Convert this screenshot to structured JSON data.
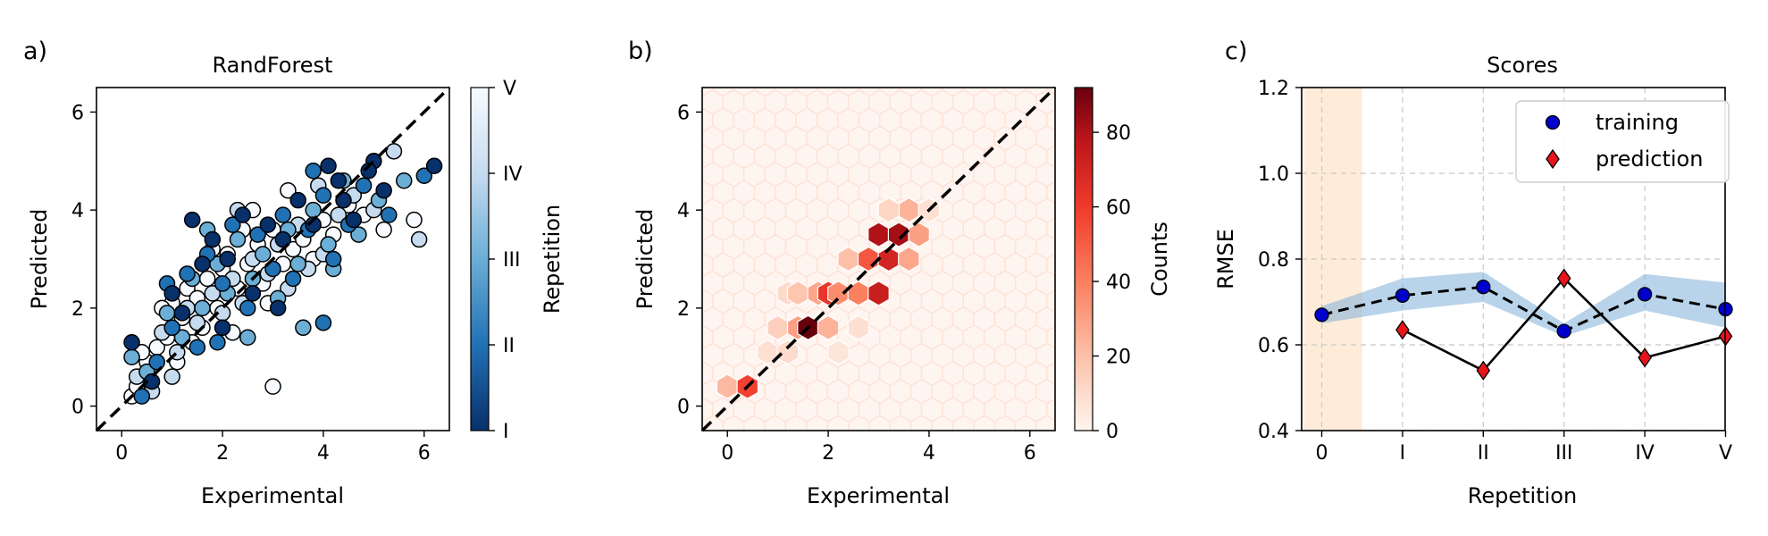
{
  "panels": {
    "a": {
      "label": "a)"
    },
    "b": {
      "label": "b)"
    },
    "c": {
      "label": "c)"
    }
  },
  "chart_data": [
    {
      "type": "scatter",
      "title": "RandForest",
      "xlabel": "Experimental",
      "ylabel": "Predicted",
      "xlim": [
        -0.5,
        6.5
      ],
      "ylim": [
        -0.5,
        6.5
      ],
      "xticks": [
        0,
        2,
        4,
        6
      ],
      "yticks": [
        0,
        2,
        4,
        6
      ],
      "identity_line": true,
      "colorbar": {
        "label": "Repetition",
        "ticks": [
          "I",
          "II",
          "III",
          "IV",
          "V"
        ],
        "colors": [
          "#08306b",
          "#2171b5",
          "#6baed6",
          "#c6dbef",
          "#f7fbff"
        ]
      },
      "series": [
        {
          "repetition": "V",
          "points": [
            [
              0.2,
              0.2
            ],
            [
              0.3,
              0.4
            ],
            [
              0.5,
              0.9
            ],
            [
              0.7,
              1.2
            ],
            [
              0.9,
              1.4
            ],
            [
              1.0,
              2.1
            ],
            [
              1.2,
              1.8
            ],
            [
              1.3,
              2.4
            ],
            [
              1.5,
              2.2
            ],
            [
              1.7,
              2.6
            ],
            [
              1.9,
              2.0
            ],
            [
              2.0,
              2.8
            ],
            [
              2.1,
              3.1
            ],
            [
              2.3,
              2.4
            ],
            [
              2.5,
              2.9
            ],
            [
              2.7,
              3.3
            ],
            [
              2.8,
              2.5
            ],
            [
              3.0,
              3.6
            ],
            [
              3.0,
              0.4
            ],
            [
              3.2,
              2.9
            ],
            [
              3.4,
              3.2
            ],
            [
              3.6,
              3.4
            ],
            [
              3.8,
              3.0
            ],
            [
              4.0,
              3.8
            ],
            [
              4.2,
              3.5
            ],
            [
              4.5,
              4.1
            ],
            [
              4.8,
              3.9
            ],
            [
              5.2,
              3.6
            ],
            [
              5.8,
              3.8
            ],
            [
              0.4,
              1.1
            ],
            [
              1.1,
              0.9
            ],
            [
              1.6,
              1.6
            ],
            [
              2.2,
              1.5
            ],
            [
              2.9,
              2.1
            ],
            [
              3.3,
              4.4
            ],
            [
              1.8,
              3.2
            ],
            [
              2.6,
              4.0
            ],
            [
              0.8,
              2.0
            ],
            [
              1.4,
              1.3
            ],
            [
              2.4,
              3.6
            ]
          ]
        },
        {
          "repetition": "IV",
          "points": [
            [
              0.3,
              0.6
            ],
            [
              0.6,
              0.3
            ],
            [
              0.8,
              1.5
            ],
            [
              1.1,
              1.1
            ],
            [
              1.3,
              2.0
            ],
            [
              1.5,
              1.7
            ],
            [
              1.8,
              2.3
            ],
            [
              2.0,
              1.9
            ],
            [
              2.2,
              2.6
            ],
            [
              2.4,
              2.1
            ],
            [
              2.6,
              3.0
            ],
            [
              2.9,
              2.7
            ],
            [
              3.1,
              3.3
            ],
            [
              3.3,
              2.4
            ],
            [
              3.5,
              3.7
            ],
            [
              3.7,
              2.8
            ],
            [
              4.0,
              3.1
            ],
            [
              4.3,
              3.9
            ],
            [
              4.6,
              4.3
            ],
            [
              5.0,
              4.0
            ],
            [
              5.4,
              5.2
            ],
            [
              5.9,
              3.4
            ],
            [
              2.3,
              4.0
            ],
            [
              3.9,
              4.5
            ],
            [
              1.0,
              0.6
            ]
          ]
        },
        {
          "repetition": "III",
          "points": [
            [
              0.2,
              1.0
            ],
            [
              0.5,
              0.7
            ],
            [
              0.9,
              1.9
            ],
            [
              1.2,
              1.4
            ],
            [
              1.4,
              2.6
            ],
            [
              1.6,
              2.0
            ],
            [
              1.9,
              2.9
            ],
            [
              2.1,
              2.3
            ],
            [
              2.3,
              3.4
            ],
            [
              2.6,
              2.6
            ],
            [
              2.8,
              3.1
            ],
            [
              3.1,
              2.2
            ],
            [
              3.3,
              3.6
            ],
            [
              3.5,
              2.9
            ],
            [
              3.8,
              4.0
            ],
            [
              4.1,
              3.3
            ],
            [
              4.4,
              4.6
            ],
            [
              4.7,
              3.5
            ],
            [
              5.1,
              4.2
            ],
            [
              5.6,
              4.6
            ],
            [
              1.7,
              3.6
            ],
            [
              3.6,
              1.6
            ],
            [
              2.5,
              1.4
            ],
            [
              4.2,
              2.8
            ]
          ]
        },
        {
          "repetition": "II",
          "points": [
            [
              0.4,
              0.2
            ],
            [
              0.7,
              0.9
            ],
            [
              1.0,
              1.6
            ],
            [
              1.3,
              2.7
            ],
            [
              1.5,
              1.2
            ],
            [
              1.7,
              3.1
            ],
            [
              2.0,
              2.5
            ],
            [
              2.2,
              3.7
            ],
            [
              2.5,
              2.0
            ],
            [
              2.7,
              3.5
            ],
            [
              3.0,
              2.8
            ],
            [
              3.2,
              3.9
            ],
            [
              3.4,
              2.6
            ],
            [
              3.7,
              3.6
            ],
            [
              4.0,
              4.3
            ],
            [
              4.2,
              3.0
            ],
            [
              4.5,
              3.7
            ],
            [
              4.8,
              4.5
            ],
            [
              5.3,
              3.9
            ],
            [
              6.0,
              4.7
            ],
            [
              1.9,
              1.3
            ],
            [
              4.0,
              1.7
            ],
            [
              0.9,
              2.5
            ],
            [
              3.8,
              4.8
            ]
          ]
        },
        {
          "repetition": "I",
          "points": [
            [
              0.2,
              1.3
            ],
            [
              0.6,
              0.5
            ],
            [
              1.0,
              2.3
            ],
            [
              1.4,
              3.8
            ],
            [
              1.6,
              2.9
            ],
            [
              1.8,
              3.4
            ],
            [
              2.1,
              3.0
            ],
            [
              2.4,
              3.9
            ],
            [
              2.6,
              2.3
            ],
            [
              2.9,
              3.7
            ],
            [
              3.2,
              3.4
            ],
            [
              3.5,
              4.2
            ],
            [
              3.8,
              3.7
            ],
            [
              4.1,
              4.9
            ],
            [
              4.4,
              4.2
            ],
            [
              4.6,
              3.8
            ],
            [
              5.0,
              5.0
            ],
            [
              5.2,
              4.4
            ],
            [
              6.2,
              4.9
            ],
            [
              1.2,
              1.9
            ],
            [
              2.0,
              1.6
            ],
            [
              3.1,
              2.0
            ],
            [
              4.3,
              4.6
            ],
            [
              4.9,
              4.8
            ]
          ]
        }
      ]
    },
    {
      "type": "heatmap",
      "subtype": "hexbin",
      "xlabel": "Experimental",
      "ylabel": "Predicted",
      "xlim": [
        -0.5,
        6.5
      ],
      "ylim": [
        -0.5,
        6.5
      ],
      "xticks": [
        0,
        2,
        4,
        6
      ],
      "yticks": [
        0,
        2,
        4,
        6
      ],
      "identity_line": true,
      "colorbar": {
        "label": "Counts",
        "min": 0,
        "max": 92,
        "ticks": [
          0,
          20,
          40,
          60,
          80
        ]
      },
      "bins": [
        {
          "x": 0.0,
          "y": 0.4,
          "count": 22
        },
        {
          "x": 0.4,
          "y": 0.4,
          "count": 58
        },
        {
          "x": 0.8,
          "y": 1.1,
          "count": 8
        },
        {
          "x": 1.2,
          "y": 1.1,
          "count": 10
        },
        {
          "x": 1.0,
          "y": 1.6,
          "count": 14
        },
        {
          "x": 1.4,
          "y": 1.6,
          "count": 30
        },
        {
          "x": 1.2,
          "y": 2.3,
          "count": 10
        },
        {
          "x": 1.6,
          "y": 1.6,
          "count": 92
        },
        {
          "x": 1.4,
          "y": 2.3,
          "count": 18
        },
        {
          "x": 2.0,
          "y": 1.6,
          "count": 24
        },
        {
          "x": 1.8,
          "y": 2.3,
          "count": 28
        },
        {
          "x": 2.0,
          "y": 2.3,
          "count": 62
        },
        {
          "x": 2.2,
          "y": 2.3,
          "count": 36
        },
        {
          "x": 2.6,
          "y": 2.3,
          "count": 40
        },
        {
          "x": 2.4,
          "y": 3.0,
          "count": 20
        },
        {
          "x": 2.8,
          "y": 3.0,
          "count": 52
        },
        {
          "x": 3.0,
          "y": 2.3,
          "count": 74
        },
        {
          "x": 3.2,
          "y": 3.0,
          "count": 70
        },
        {
          "x": 3.0,
          "y": 3.5,
          "count": 80
        },
        {
          "x": 3.4,
          "y": 3.5,
          "count": 82
        },
        {
          "x": 3.6,
          "y": 3.0,
          "count": 28
        },
        {
          "x": 3.8,
          "y": 3.5,
          "count": 30
        },
        {
          "x": 3.6,
          "y": 4.0,
          "count": 24
        },
        {
          "x": 3.2,
          "y": 4.0,
          "count": 12
        },
        {
          "x": 2.2,
          "y": 1.1,
          "count": 6
        },
        {
          "x": 2.6,
          "y": 1.6,
          "count": 8
        },
        {
          "x": 4.0,
          "y": 4.0,
          "count": 8
        }
      ]
    },
    {
      "type": "line",
      "title": "Scores",
      "xlabel": "Repetition",
      "ylabel": "RMSE",
      "categories": [
        "0",
        "I",
        "II",
        "III",
        "IV",
        "V"
      ],
      "ylim": [
        0.4,
        1.2
      ],
      "yticks": [
        0.4,
        0.6,
        0.8,
        1.0,
        1.2
      ],
      "grid": true,
      "legend_position": "top-right",
      "highlight_category": "0",
      "series": [
        {
          "name": "training",
          "values": [
            0.67,
            0.715,
            0.735,
            0.632,
            0.718,
            0.683
          ],
          "band_low": [
            0.65,
            0.68,
            0.7,
            0.62,
            0.68,
            0.64
          ],
          "band_high": [
            0.69,
            0.755,
            0.77,
            0.65,
            0.765,
            0.745
          ],
          "color": "#0000cc",
          "marker": "circle",
          "line": "dashed"
        },
        {
          "name": "prediction",
          "values": [
            null,
            0.635,
            0.54,
            0.755,
            0.57,
            0.62
          ],
          "color": "#e8141c",
          "marker": "diamond",
          "line": "solid"
        }
      ]
    }
  ]
}
